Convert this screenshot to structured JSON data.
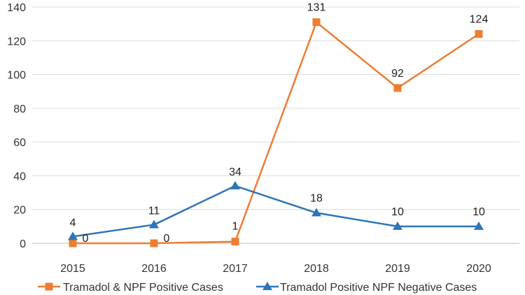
{
  "chart_data": {
    "type": "line",
    "title": "",
    "xlabel": "",
    "ylabel": "",
    "categories": [
      "2015",
      "2016",
      "2017",
      "2018",
      "2019",
      "2020"
    ],
    "ylim": [
      0,
      140
    ],
    "yticks": [
      0,
      20,
      40,
      60,
      80,
      100,
      120,
      140
    ],
    "grid": true,
    "legend_position": "bottom",
    "series": [
      {
        "name": "Tramadol & NPF Positive Cases",
        "values": [
          0,
          0,
          1,
          131,
          92,
          124
        ],
        "labels": [
          "0",
          "0",
          "1",
          "131",
          "92",
          "124"
        ],
        "color": "#ED7D31",
        "marker": "square"
      },
      {
        "name": "Tramadol Positive NPF Negative Cases",
        "values": [
          4,
          11,
          34,
          18,
          10,
          10
        ],
        "labels": [
          "4",
          "11",
          "34",
          "18",
          "10",
          "10"
        ],
        "color": "#2E75B6",
        "marker": "triangle"
      }
    ]
  }
}
